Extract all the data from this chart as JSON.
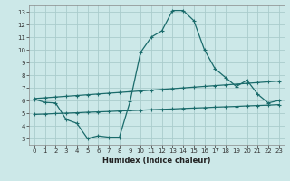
{
  "xlabel": "Humidex (Indice chaleur)",
  "bg_color": "#cce8e8",
  "grid_color": "#aacccc",
  "line_color": "#1a6b6b",
  "x_main": [
    0,
    1,
    2,
    3,
    4,
    5,
    6,
    7,
    8,
    9,
    10,
    11,
    12,
    13,
    14,
    15,
    16,
    17,
    18,
    19,
    20,
    21,
    22,
    23
  ],
  "y_main": [
    6.1,
    5.85,
    5.8,
    4.5,
    4.2,
    3.0,
    3.2,
    3.1,
    3.1,
    5.9,
    9.8,
    11.0,
    11.5,
    13.1,
    13.1,
    12.3,
    10.0,
    8.5,
    7.8,
    7.1,
    7.6,
    6.5,
    5.8,
    6.0
  ],
  "x_upper": [
    0,
    1,
    2,
    3,
    4,
    5,
    6,
    7,
    8,
    9,
    10,
    11,
    12,
    13,
    14,
    15,
    16,
    17,
    18,
    19,
    20,
    21,
    22,
    23
  ],
  "y_upper": [
    6.15,
    6.21,
    6.27,
    6.33,
    6.39,
    6.45,
    6.51,
    6.57,
    6.63,
    6.69,
    6.75,
    6.81,
    6.87,
    6.93,
    6.99,
    7.05,
    7.11,
    7.17,
    7.23,
    7.29,
    7.35,
    7.41,
    7.47,
    7.53
  ],
  "x_lower": [
    0,
    1,
    2,
    3,
    4,
    5,
    6,
    7,
    8,
    9,
    10,
    11,
    12,
    13,
    14,
    15,
    16,
    17,
    18,
    19,
    20,
    21,
    22,
    23
  ],
  "y_lower": [
    4.9,
    4.93,
    4.97,
    5.0,
    5.03,
    5.07,
    5.1,
    5.13,
    5.17,
    5.2,
    5.23,
    5.27,
    5.3,
    5.33,
    5.37,
    5.4,
    5.43,
    5.47,
    5.5,
    5.53,
    5.57,
    5.6,
    5.63,
    5.67
  ],
  "xlim": [
    -0.5,
    23.5
  ],
  "ylim": [
    2.5,
    13.5
  ],
  "yticks": [
    3,
    4,
    5,
    6,
    7,
    8,
    9,
    10,
    11,
    12,
    13
  ],
  "xticks": [
    0,
    1,
    2,
    3,
    4,
    5,
    6,
    7,
    8,
    9,
    10,
    11,
    12,
    13,
    14,
    15,
    16,
    17,
    18,
    19,
    20,
    21,
    22,
    23
  ],
  "tick_fontsize": 5.0,
  "xlabel_fontsize": 6.0
}
